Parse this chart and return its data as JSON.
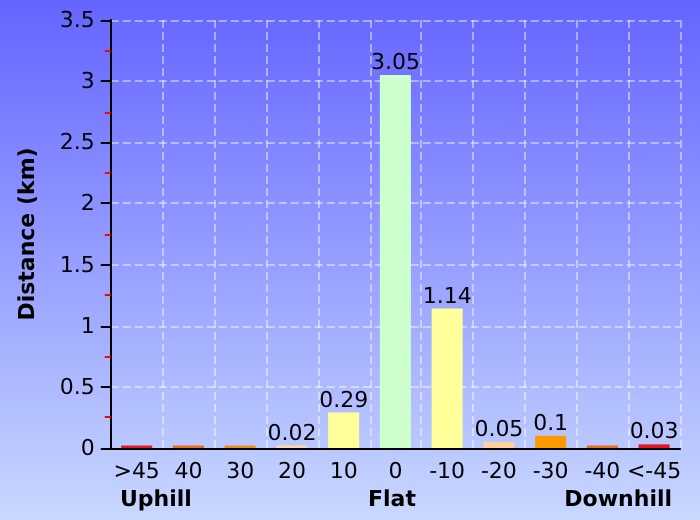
{
  "chart_data": {
    "type": "bar",
    "ylabel": "Distance (km)",
    "categories": [
      ">45",
      "40",
      "30",
      "20",
      "10",
      "0",
      "-10",
      "-20",
      "-30",
      "-40",
      "<-45"
    ],
    "values": [
      0.02,
      0.02,
      0.02,
      0.02,
      0.29,
      3.05,
      1.14,
      0.05,
      0.1,
      0.02,
      0.03
    ],
    "value_labels": [
      null,
      null,
      null,
      "0.02",
      "0.29",
      "3.05",
      "1.14",
      "0.05",
      "0.1",
      null,
      "0.03"
    ],
    "colors": [
      "#e8141b",
      "#f06a10",
      "#f08c10",
      "#ffd8a8",
      "#ffff99",
      "#ccffcc",
      "#ffff99",
      "#ffd0a0",
      "#ff9900",
      "#f06a10",
      "#e8141b"
    ],
    "ylim": [
      0,
      3.5
    ],
    "yticks": [
      0,
      0.5,
      1,
      1.5,
      2,
      2.5,
      3,
      3.5
    ],
    "grid": true,
    "annotations": [
      "Uphill",
      "Flat",
      "Downhill"
    ]
  }
}
